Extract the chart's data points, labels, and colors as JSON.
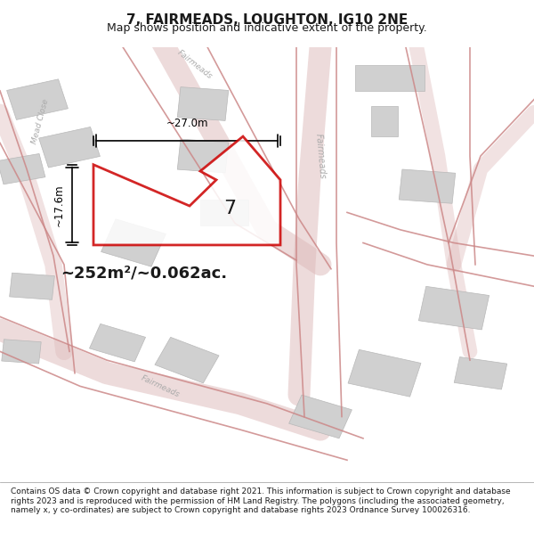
{
  "title": "7, FAIRMEADS, LOUGHTON, IG10 2NE",
  "subtitle": "Map shows position and indicative extent of the property.",
  "footer": "Contains OS data © Crown copyright and database right 2021. This information is subject to Crown copyright and database rights 2023 and is reproduced with the permission of HM Land Registry. The polygons (including the associated geometry, namely x, y co-ordinates) are subject to Crown copyright and database rights 2023 Ordnance Survey 100026316.",
  "bg_color": "#f5f5f5",
  "map_bg": "#eeecec",
  "area_text": "~252m²/~0.062ac.",
  "label_7": "7",
  "dim_width": "~27.0m",
  "dim_height": "~17.6m",
  "road_color": "#ddb8b8",
  "building_color": "#d0d0d0",
  "building_edge": "#b8b8b8",
  "property_color": "#ffffff",
  "property_edge": "#cc0000",
  "street_label_color": "#aaaaaa",
  "dim_color": "#000000",
  "text_color": "#1a1a1a"
}
